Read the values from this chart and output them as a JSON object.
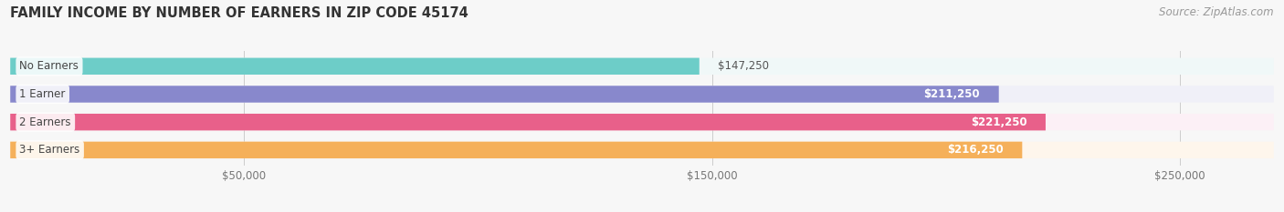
{
  "title": "FAMILY INCOME BY NUMBER OF EARNERS IN ZIP CODE 45174",
  "source": "Source: ZipAtlas.com",
  "categories": [
    "No Earners",
    "1 Earner",
    "2 Earners",
    "3+ Earners"
  ],
  "values": [
    147250,
    211250,
    221250,
    216250
  ],
  "labels": [
    "$147,250",
    "$211,250",
    "$221,250",
    "$216,250"
  ],
  "label_inside": [
    false,
    true,
    true,
    true
  ],
  "bar_colors": [
    "#6DCDC8",
    "#8888CC",
    "#E8608A",
    "#F5B05A"
  ],
  "bg_colors": [
    "#F0F8F8",
    "#F0F0F8",
    "#FCF0F6",
    "#FEF6EC"
  ],
  "xmin": 0,
  "xmax": 270000,
  "xticks": [
    50000,
    150000,
    250000
  ],
  "xtick_labels": [
    "$50,000",
    "$150,000",
    "$250,000"
  ],
  "title_fontsize": 10.5,
  "source_fontsize": 8.5,
  "background_color": "#F7F7F7"
}
